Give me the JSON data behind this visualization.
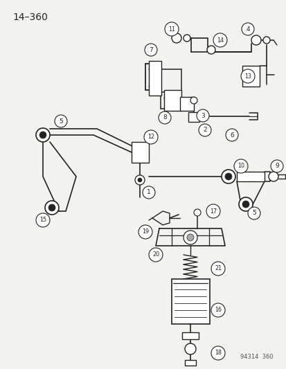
{
  "title": "14–360",
  "bg_color": "#f2f2ee",
  "line_color": "#222222",
  "label_color": "#222222",
  "watermark": "94314  360",
  "fig_w": 4.14,
  "fig_h": 5.33,
  "dpi": 100
}
